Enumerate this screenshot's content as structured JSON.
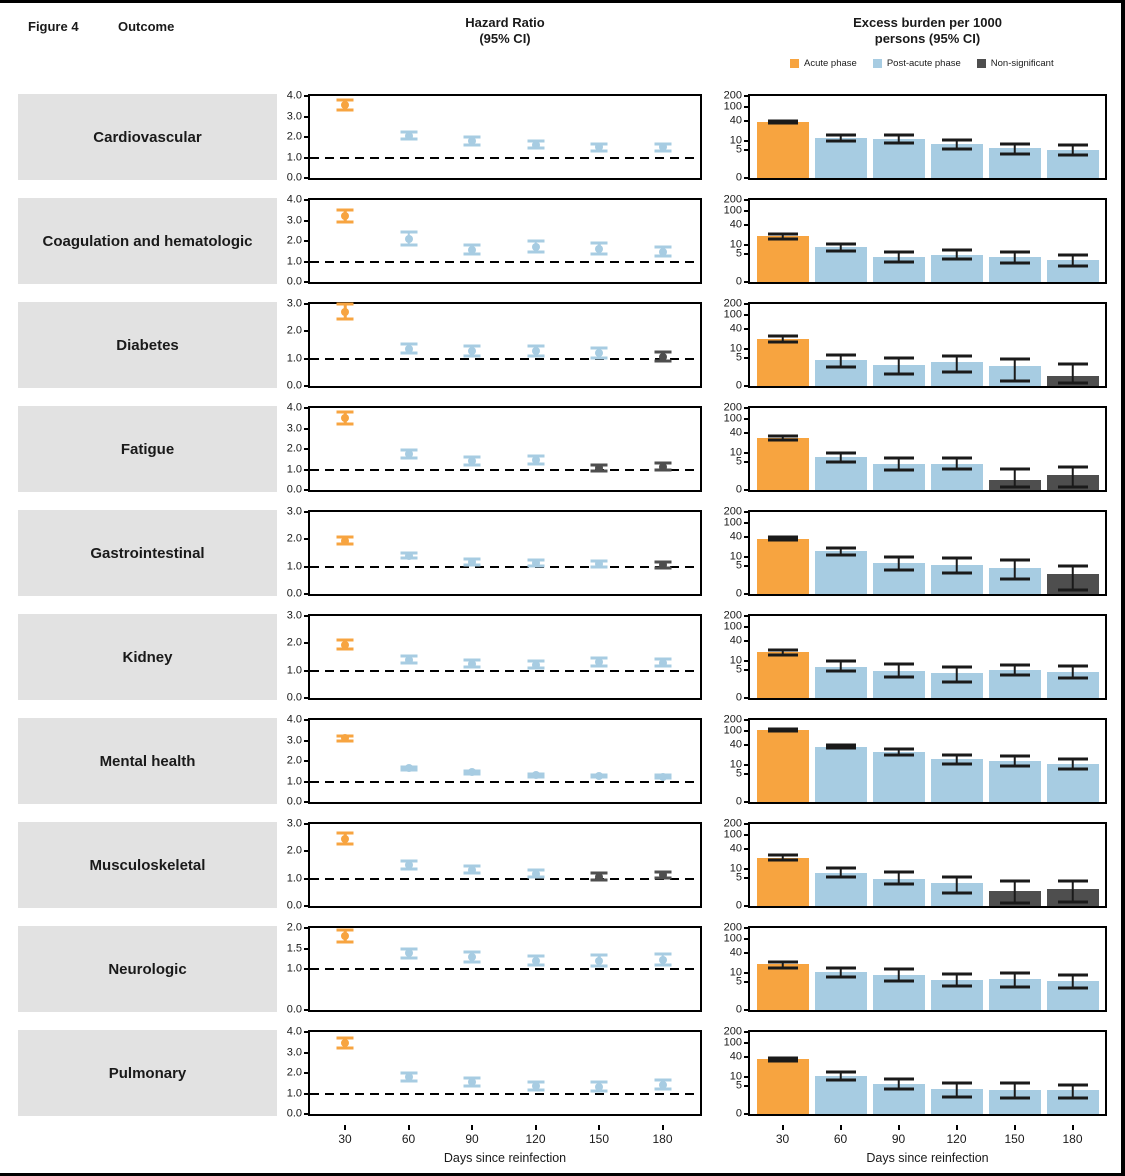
{
  "figure_label": "Figure 4",
  "headers": {
    "outcome": "Outcome",
    "hazard_line1": "Hazard Ratio",
    "hazard_line2": "(95% CI)",
    "burden_line1": "Excess burden per 1000",
    "burden_line2": "persons (95% CI)"
  },
  "legend": {
    "items": [
      {
        "key": "acute",
        "label": "Acute phase",
        "color": "#F7A440"
      },
      {
        "key": "post",
        "label": "Post-acute phase",
        "color": "#A7CCE2"
      },
      {
        "key": "ns",
        "label": "Non-significant",
        "color": "#4E4E4E"
      }
    ]
  },
  "colors": {
    "acute": "#F7A440",
    "post": "#A7CCE2",
    "ns": "#4E4E4E",
    "row_label_bg": "#E2E2E2",
    "error_bar": "#1A1A1A"
  },
  "x_axis": {
    "tick_labels": [
      "30",
      "60",
      "90",
      "120",
      "150",
      "180"
    ],
    "title_left": "Days since reinfection",
    "title_right": "Days since reinfection"
  },
  "chart_data": {
    "type": "forest-dot-plot + bar",
    "days": [
      30,
      60,
      90,
      120,
      150,
      180
    ],
    "hazard_reference_line": 1.0,
    "burden_axis": {
      "tick_values": [
        200,
        100,
        40,
        10,
        5,
        0
      ],
      "tick_labels": [
        "200",
        "100",
        "40",
        "10",
        "5",
        "0"
      ],
      "scale": "log10(v+1)",
      "max": 200
    },
    "outcomes": [
      {
        "outcome": "Cardiovascular",
        "hr": {
          "ymax": 4,
          "ticks": [
            4,
            3,
            2,
            1,
            0
          ],
          "tick_labels": [
            "4.0",
            "3.0",
            "2.0",
            "1.0",
            "0.0"
          ],
          "est": [
            3.55,
            2.05,
            1.8,
            1.62,
            1.5,
            1.5
          ],
          "lo": [
            3.3,
            1.9,
            1.62,
            1.45,
            1.33,
            1.33
          ],
          "hi": [
            3.8,
            2.25,
            1.98,
            1.8,
            1.67,
            1.68
          ],
          "phase": [
            "acute",
            "post",
            "post",
            "post",
            "post",
            "post"
          ]
        },
        "burden": {
          "est": [
            36,
            12,
            11.5,
            8,
            5.8,
            5.3
          ],
          "lo": [
            33,
            10,
            8.5,
            5.5,
            3.8,
            3.5
          ],
          "hi": [
            40,
            15,
            15,
            11,
            8,
            7.7
          ],
          "phase": [
            "acute",
            "post",
            "post",
            "post",
            "post",
            "post"
          ]
        }
      },
      {
        "outcome": "Coagulation and hematologic",
        "hr": {
          "ymax": 4,
          "ticks": [
            4,
            3,
            2,
            1,
            0
          ],
          "tick_labels": [
            "4.0",
            "3.0",
            "2.0",
            "1.0",
            "0.0"
          ],
          "est": [
            3.2,
            2.1,
            1.58,
            1.7,
            1.63,
            1.48
          ],
          "lo": [
            2.95,
            1.82,
            1.37,
            1.44,
            1.39,
            1.26
          ],
          "hi": [
            3.5,
            2.42,
            1.82,
            2.02,
            1.9,
            1.73
          ],
          "phase": [
            "acute",
            "post",
            "post",
            "post",
            "post",
            "post"
          ]
        },
        "burden": {
          "est": [
            18,
            8.8,
            4.1,
            4.9,
            4,
            3.2
          ],
          "lo": [
            15,
            6.3,
            2.6,
            3.3,
            2.5,
            1.8
          ],
          "hi": [
            21,
            11,
            6,
            7,
            6,
            4.7
          ],
          "phase": [
            "acute",
            "post",
            "post",
            "post",
            "post",
            "post"
          ]
        }
      },
      {
        "outcome": "Diabetes",
        "hr": {
          "ymax": 3,
          "ticks": [
            3,
            2,
            1,
            0
          ],
          "tick_labels": [
            "3.0",
            "2.0",
            "1.0",
            "0.0"
          ],
          "est": [
            2.7,
            1.36,
            1.27,
            1.28,
            1.2,
            1.07
          ],
          "lo": [
            2.45,
            1.2,
            1.1,
            1.11,
            1.04,
            0.92
          ],
          "hi": [
            3.0,
            1.55,
            1.46,
            1.47,
            1.39,
            1.25
          ],
          "phase": [
            "acute",
            "post",
            "post",
            "post",
            "post",
            "ns"
          ]
        },
        "burden": {
          "est": [
            20,
            4.3,
            3,
            3.6,
            2.6,
            0.9
          ],
          "lo": [
            16.5,
            2.4,
            1.2,
            1.4,
            0.4,
            0.2
          ],
          "hi": [
            24,
            6.6,
            5,
            6,
            4.8,
            3.1
          ],
          "phase": [
            "acute",
            "post",
            "post",
            "post",
            "post",
            "ns"
          ]
        }
      },
      {
        "outcome": "Fatigue",
        "hr": {
          "ymax": 4,
          "ticks": [
            4,
            3,
            2,
            1,
            0
          ],
          "tick_labels": [
            "4.0",
            "3.0",
            "2.0",
            "1.0",
            "0.0"
          ],
          "est": [
            3.5,
            1.76,
            1.4,
            1.44,
            1.05,
            1.14
          ],
          "lo": [
            3.22,
            1.57,
            1.22,
            1.25,
            0.91,
            0.99
          ],
          "hi": [
            3.82,
            1.97,
            1.6,
            1.66,
            1.2,
            1.31
          ],
          "phase": [
            "acute",
            "post",
            "post",
            "post",
            "ns",
            "ns"
          ]
        },
        "burden": {
          "est": [
            28,
            7.4,
            4.4,
            4.5,
            0.9,
            1.6
          ],
          "lo": [
            24.5,
            5.3,
            2.7,
            2.9,
            0.2,
            0.2
          ],
          "hi": [
            32,
            10,
            7,
            7,
            2.9,
            3.4
          ],
          "phase": [
            "acute",
            "post",
            "post",
            "post",
            "ns",
            "ns"
          ]
        }
      },
      {
        "outcome": "Gastrointestinal",
        "hr": {
          "ymax": 3,
          "ticks": [
            3,
            2,
            1,
            0
          ],
          "tick_labels": [
            "3.0",
            "2.0",
            "1.0",
            "0.0"
          ],
          "est": [
            1.95,
            1.4,
            1.17,
            1.13,
            1.1,
            1.05
          ],
          "lo": [
            1.84,
            1.3,
            1.07,
            1.03,
            1.0,
            0.95
          ],
          "hi": [
            2.07,
            1.51,
            1.28,
            1.24,
            1.21,
            1.16
          ],
          "phase": [
            "acute",
            "post",
            "post",
            "post",
            "post",
            "ns"
          ]
        },
        "burden": {
          "est": [
            35,
            15,
            6.2,
            5.4,
            4.3,
            2.7
          ],
          "lo": [
            31,
            11.8,
            3.7,
            2.8,
            1.6,
            0.3
          ],
          "hi": [
            39,
            19,
            10.2,
            9.2,
            7.8,
            5.1
          ],
          "phase": [
            "acute",
            "post",
            "post",
            "post",
            "post",
            "ns"
          ]
        }
      },
      {
        "outcome": "Kidney",
        "hr": {
          "ymax": 3,
          "ticks": [
            3,
            2,
            1,
            0
          ],
          "tick_labels": [
            "3.0",
            "2.0",
            "1.0",
            "0.0"
          ],
          "est": [
            1.95,
            1.39,
            1.26,
            1.21,
            1.3,
            1.29
          ],
          "lo": [
            1.8,
            1.27,
            1.13,
            1.08,
            1.17,
            1.16
          ],
          "hi": [
            2.12,
            1.53,
            1.4,
            1.36,
            1.45,
            1.44
          ],
          "phase": [
            "acute",
            "post",
            "post",
            "post",
            "post",
            "post"
          ]
        },
        "burden": {
          "est": [
            18,
            6.4,
            4.9,
            4,
            5.2,
            4.5
          ],
          "lo": [
            15,
            4.6,
            2.9,
            1.8,
            3.3,
            2.6
          ],
          "hi": [
            21.5,
            9.6,
            7.9,
            6.6,
            7.7,
            6.8
          ],
          "phase": [
            "acute",
            "post",
            "post",
            "post",
            "post",
            "post"
          ]
        }
      },
      {
        "outcome": "Mental health",
        "hr": {
          "ymax": 4,
          "ticks": [
            4,
            3,
            2,
            1,
            0
          ],
          "tick_labels": [
            "4.0",
            "3.0",
            "2.0",
            "1.0",
            "0.0"
          ],
          "est": [
            3.1,
            1.65,
            1.45,
            1.3,
            1.27,
            1.22
          ],
          "lo": [
            3.0,
            1.58,
            1.39,
            1.24,
            1.2,
            1.15
          ],
          "hi": [
            3.2,
            1.72,
            1.52,
            1.37,
            1.34,
            1.3
          ],
          "phase": [
            "acute",
            "post",
            "post",
            "post",
            "post",
            "post"
          ]
        },
        "burden": {
          "est": [
            105,
            35,
            24,
            15,
            13.5,
            11
          ],
          "lo": [
            100,
            31,
            20,
            11,
            9.5,
            7.5
          ],
          "hi": [
            111,
            39,
            29,
            20,
            18.5,
            15.5
          ],
          "phase": [
            "acute",
            "post",
            "post",
            "post",
            "post",
            "post"
          ]
        }
      },
      {
        "outcome": "Musculoskeletal",
        "hr": {
          "ymax": 3,
          "ticks": [
            3,
            2,
            1,
            0
          ],
          "tick_labels": [
            "3.0",
            "2.0",
            "1.0",
            "0.0"
          ],
          "est": [
            2.45,
            1.5,
            1.32,
            1.18,
            1.07,
            1.13
          ],
          "lo": [
            2.26,
            1.37,
            1.2,
            1.07,
            0.96,
            1.02
          ],
          "hi": [
            2.66,
            1.65,
            1.45,
            1.3,
            1.19,
            1.26
          ],
          "phase": [
            "acute",
            "post",
            "post",
            "post",
            "ns",
            "ns"
          ]
        },
        "burden": {
          "est": [
            22,
            7.5,
            4.9,
            3.4,
            1.6,
            2.1
          ],
          "lo": [
            18.5,
            5.4,
            3.1,
            1.3,
            0.2,
            0.3
          ],
          "hi": [
            26,
            10.6,
            7.8,
            5.5,
            3.9,
            4.0
          ],
          "phase": [
            "acute",
            "post",
            "post",
            "post",
            "ns",
            "ns"
          ]
        }
      },
      {
        "outcome": "Neurologic",
        "hr": {
          "ymax": 2,
          "ticks": [
            2,
            1.5,
            1,
            0
          ],
          "tick_labels": [
            "2.0",
            "1.5",
            "1.0",
            "0.0"
          ],
          "est": [
            1.8,
            1.38,
            1.3,
            1.2,
            1.2,
            1.22
          ],
          "lo": [
            1.67,
            1.28,
            1.18,
            1.1,
            1.08,
            1.1
          ],
          "hi": [
            1.95,
            1.5,
            1.42,
            1.31,
            1.34,
            1.36
          ],
          "phase": [
            "acute",
            "post",
            "post",
            "post",
            "post",
            "post"
          ]
        },
        "burden": {
          "est": [
            18,
            10.5,
            8.8,
            6,
            6.4,
            5.4
          ],
          "lo": [
            14.5,
            7.5,
            5.7,
            3.6,
            3.5,
            3.1
          ],
          "hi": [
            22,
            14,
            12.8,
            9.4,
            10.3,
            8.4
          ],
          "phase": [
            "acute",
            "post",
            "post",
            "post",
            "post",
            "post"
          ]
        }
      },
      {
        "outcome": "Pulmonary",
        "hr": {
          "ymax": 4,
          "ticks": [
            4,
            3,
            2,
            1,
            0
          ],
          "tick_labels": [
            "4.0",
            "3.0",
            "2.0",
            "1.0",
            "0.0"
          ],
          "est": [
            3.45,
            1.8,
            1.55,
            1.35,
            1.32,
            1.42
          ],
          "lo": [
            3.2,
            1.61,
            1.37,
            1.18,
            1.14,
            1.22
          ],
          "hi": [
            3.72,
            2.01,
            1.76,
            1.55,
            1.54,
            1.65
          ],
          "phase": [
            "acute",
            "post",
            "post",
            "post",
            "post",
            "post"
          ]
        },
        "burden": {
          "est": [
            33,
            11,
            6.1,
            4,
            3.7,
            3.6
          ],
          "lo": [
            29,
            8.2,
            4.2,
            2.1,
            1.9,
            1.9
          ],
          "hi": [
            37,
            14.5,
            8.8,
            6.4,
            6.2,
            5.4
          ],
          "phase": [
            "acute",
            "post",
            "post",
            "post",
            "post",
            "post"
          ]
        }
      }
    ]
  }
}
